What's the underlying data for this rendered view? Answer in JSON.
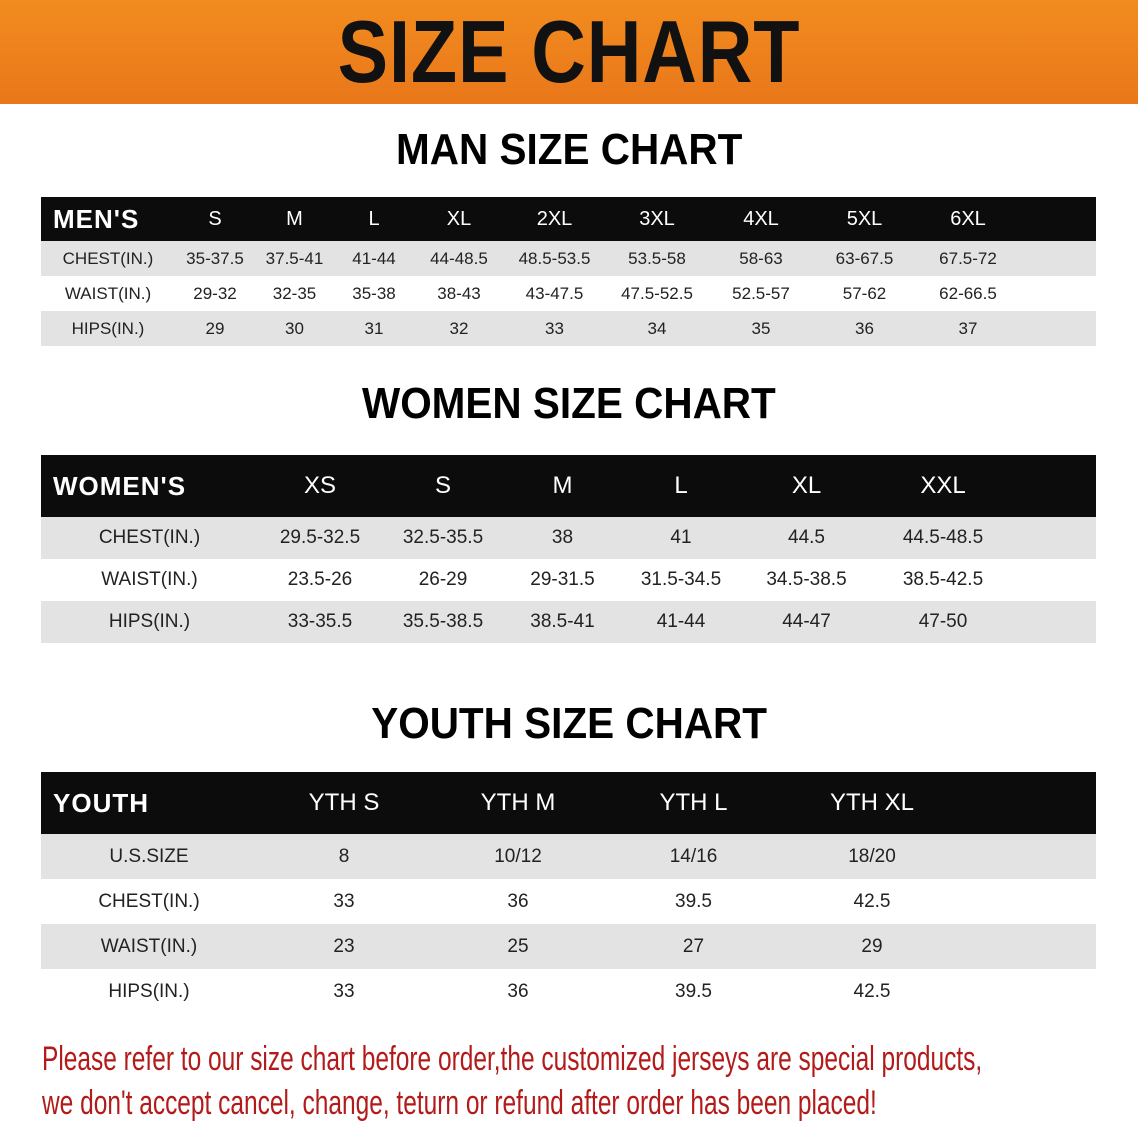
{
  "banner": {
    "title": "SIZE CHART",
    "color": "#ee831d"
  },
  "men": {
    "title": "MAN SIZE CHART",
    "header": [
      "MEN'S",
      "S",
      "M",
      "L",
      "XL",
      "2XL",
      "3XL",
      "4XL",
      "5XL",
      "6XL",
      ""
    ],
    "rows": [
      [
        "CHEST(IN.)",
        "35-37.5",
        "37.5-41",
        "41-44",
        "44-48.5",
        "48.5-53.5",
        "53.5-58",
        "58-63",
        "63-67.5",
        "67.5-72",
        ""
      ],
      [
        "WAIST(IN.)",
        "29-32",
        "32-35",
        "35-38",
        "38-43",
        "43-47.5",
        "47.5-52.5",
        "52.5-57",
        "57-62",
        "62-66.5",
        ""
      ],
      [
        "HIPS(IN.)",
        "29",
        "30",
        "31",
        "32",
        "33",
        "34",
        "35",
        "36",
        "37",
        ""
      ]
    ]
  },
  "women": {
    "title": "WOMEN SIZE CHART",
    "header": [
      "WOMEN'S",
      "XS",
      "S",
      "M",
      "L",
      "XL",
      "XXL",
      ""
    ],
    "rows": [
      [
        "CHEST(IN.)",
        "29.5-32.5",
        "32.5-35.5",
        "38",
        "41",
        "44.5",
        "44.5-48.5",
        ""
      ],
      [
        "WAIST(IN.)",
        "23.5-26",
        "26-29",
        "29-31.5",
        "31.5-34.5",
        "34.5-38.5",
        "38.5-42.5",
        ""
      ],
      [
        "HIPS(IN.)",
        "33-35.5",
        "35.5-38.5",
        "38.5-41",
        "41-44",
        "44-47",
        "47-50",
        ""
      ]
    ]
  },
  "youth": {
    "title": "YOUTH SIZE CHART",
    "header": [
      "YOUTH",
      "YTH S",
      "YTH M",
      "YTH L",
      "YTH XL",
      ""
    ],
    "rows": [
      [
        "U.S.SIZE",
        "8",
        "10/12",
        "14/16",
        "18/20",
        ""
      ],
      [
        "CHEST(IN.)",
        "33",
        "36",
        "39.5",
        "42.5",
        ""
      ],
      [
        "WAIST(IN.)",
        "23",
        "25",
        "27",
        "29",
        ""
      ],
      [
        "HIPS(IN.)",
        "33",
        "36",
        "39.5",
        "42.5",
        ""
      ]
    ]
  },
  "notice": {
    "line1": "Please refer to our size chart before order,the customized jerseys are special products,",
    "line2": "we don't accept cancel, change, teturn or refund after order has been placed!",
    "color": "#b31b1b"
  }
}
